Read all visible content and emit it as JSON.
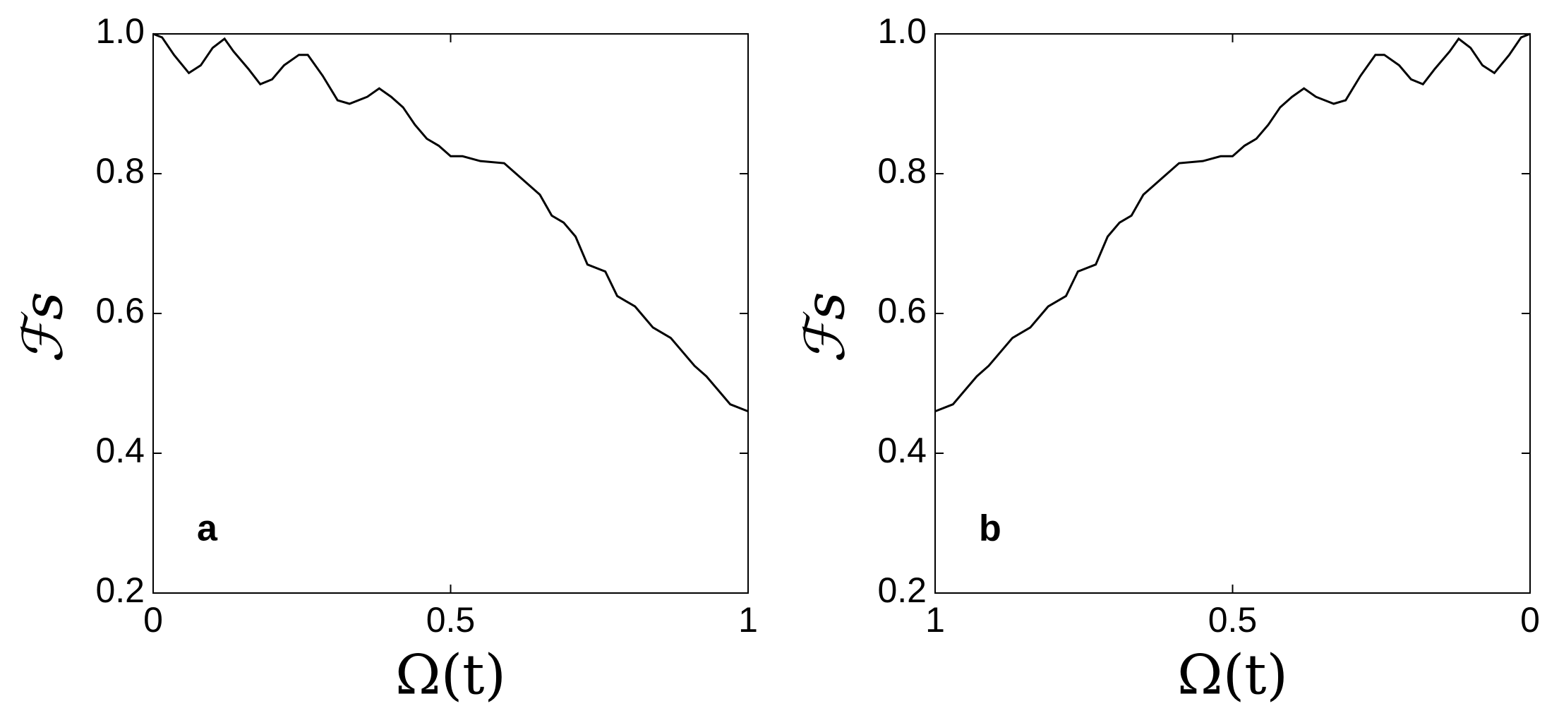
{
  "chart_data": [
    {
      "type": "line",
      "annotation": "a",
      "xlabel": "Ω(t)",
      "ylabel": "ℱs",
      "x": [
        0,
        0.015,
        0.035,
        0.06,
        0.08,
        0.1,
        0.12,
        0.135,
        0.16,
        0.18,
        0.2,
        0.22,
        0.245,
        0.26,
        0.285,
        0.31,
        0.33,
        0.36,
        0.38,
        0.4,
        0.42,
        0.44,
        0.46,
        0.48,
        0.5,
        0.52,
        0.55,
        0.59,
        0.61,
        0.63,
        0.65,
        0.67,
        0.69,
        0.71,
        0.73,
        0.76,
        0.78,
        0.81,
        0.84,
        0.87,
        0.89,
        0.91,
        0.93,
        0.95,
        0.97,
        1
      ],
      "series": [
        {
          "color": "#000000",
          "values": [
            1.0,
            0.995,
            0.97,
            0.944,
            0.955,
            0.98,
            0.993,
            0.975,
            0.95,
            0.928,
            0.935,
            0.955,
            0.97,
            0.97,
            0.94,
            0.905,
            0.9,
            0.91,
            0.922,
            0.91,
            0.895,
            0.87,
            0.85,
            0.84,
            0.825,
            0.825,
            0.818,
            0.815,
            0.8,
            0.785,
            0.77,
            0.74,
            0.73,
            0.71,
            0.67,
            0.66,
            0.625,
            0.61,
            0.58,
            0.565,
            0.545,
            0.525,
            0.51,
            0.49,
            0.47,
            0.46
          ]
        }
      ],
      "xlim": [
        0,
        1
      ],
      "xticks": [
        0,
        0.5,
        1
      ],
      "ylim": [
        0.2,
        1
      ],
      "yticks": [
        0.2,
        0.4,
        0.6,
        0.8,
        {
          "value": 1,
          "label": "1.0"
        }
      ]
    },
    {
      "type": "line",
      "annotation": "b",
      "xlabel": "Ω(t)",
      "ylabel": "ℱs",
      "x": [
        0,
        0.015,
        0.035,
        0.06,
        0.08,
        0.1,
        0.12,
        0.135,
        0.16,
        0.18,
        0.2,
        0.22,
        0.245,
        0.26,
        0.285,
        0.31,
        0.33,
        0.36,
        0.38,
        0.4,
        0.42,
        0.44,
        0.46,
        0.48,
        0.5,
        0.52,
        0.55,
        0.59,
        0.61,
        0.63,
        0.65,
        0.67,
        0.69,
        0.71,
        0.73,
        0.76,
        0.78,
        0.81,
        0.84,
        0.87,
        0.89,
        0.91,
        0.93,
        0.95,
        0.97,
        1
      ],
      "series": [
        {
          "color": "#000000",
          "values": [
            1.0,
            0.995,
            0.97,
            0.944,
            0.955,
            0.98,
            0.993,
            0.975,
            0.95,
            0.928,
            0.935,
            0.955,
            0.97,
            0.97,
            0.94,
            0.905,
            0.9,
            0.91,
            0.922,
            0.91,
            0.895,
            0.87,
            0.85,
            0.84,
            0.825,
            0.825,
            0.818,
            0.815,
            0.8,
            0.785,
            0.77,
            0.74,
            0.73,
            0.71,
            0.67,
            0.66,
            0.625,
            0.61,
            0.58,
            0.565,
            0.545,
            0.525,
            0.51,
            0.49,
            0.47,
            0.46
          ]
        }
      ],
      "xlim": [
        1,
        0
      ],
      "xticks": [
        1,
        0.5,
        0
      ],
      "ylim": [
        0.2,
        1
      ],
      "yticks": [
        0.2,
        0.4,
        0.6,
        0.8,
        {
          "value": 1,
          "label": "1.0"
        }
      ]
    }
  ]
}
